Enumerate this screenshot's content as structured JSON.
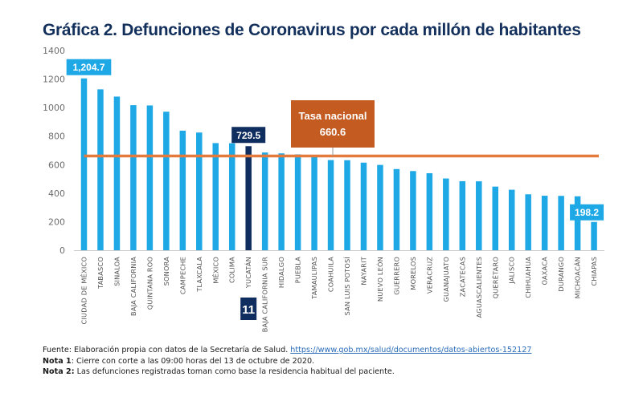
{
  "title": "Gráfica 2. Defunciones de Coronavirus por cada millón de habitantes",
  "chart_data": {
    "type": "bar",
    "title": "Gráfica 2. Defunciones de Coronavirus por cada millón de habitantes",
    "xlabel": "",
    "ylabel": "",
    "ylim": [
      0,
      1400
    ],
    "yticks": [
      0,
      200,
      400,
      600,
      800,
      1000,
      1200,
      1400
    ],
    "grid": false,
    "categories": [
      "CIUDAD DE MÉXICO",
      "TABASCO",
      "SINALOA",
      "BAJA CALIFORNIA",
      "QUINTANA ROO",
      "SONORA",
      "CAMPECHE",
      "TLAXCALA",
      "MÉXICO",
      "COLIMA",
      "YUCATÁN",
      "BAJA CALIFORNIA SUR",
      "HIDALGO",
      "PUEBLA",
      "TAMAULIPAS",
      "COAHUILA",
      "SAN LUIS POTOSÍ",
      "NAYARIT",
      "NUEVO LEÓN",
      "GUERRERO",
      "MORELOS",
      "VERACRUZ",
      "GUANAJUATO",
      "ZACATECAS",
      "AGUASCALIENTES",
      "QUERÉTARO",
      "JALISCO",
      "CHIHUAHUA",
      "OAXACA",
      "DURANGO",
      "MICHOACÁN",
      "CHIAPAS"
    ],
    "values": [
      1204.7,
      1128,
      1077,
      1017,
      1015,
      971,
      838,
      825,
      751,
      750,
      729.5,
      685,
      679,
      672,
      658,
      632,
      631,
      614,
      598,
      569,
      555,
      540,
      503,
      484,
      483,
      446,
      424,
      392,
      382,
      381,
      378,
      198.2
    ],
    "highlight": {
      "category": "YUCATÁN",
      "rank_label": "11"
    },
    "data_labels": [
      {
        "category": "CIUDAD DE MÉXICO",
        "text": "1,204.7"
      },
      {
        "category": "YUCATÁN",
        "text": "729.5"
      },
      {
        "category": "CHIAPAS",
        "text": "198.2"
      }
    ],
    "reference_line": {
      "value": 660.6,
      "label_line1": "Tasa nacional",
      "label_line2": "660.6"
    },
    "colors": {
      "bar": "#1fa8e6",
      "highlight_bar": "#0f2d5e",
      "reference": "#e57a3d",
      "reference_box": "#c45c22",
      "axis": "#cccccc"
    }
  },
  "notes": {
    "source_prefix": "Fuente: Elaboración propia con datos de la Secretaría de Salud. ",
    "source_link": "https://www.gob.mx/salud/documentos/datos-abiertos-152127",
    "nota1_label": "Nota 1",
    "nota1_text": ": Cierre con corte a las 09:00 horas del 13 de octubre de 2020.",
    "nota2_label": "Nota 2:",
    "nota2_text": " Las defunciones registradas toman como base la residencia habitual del paciente."
  }
}
